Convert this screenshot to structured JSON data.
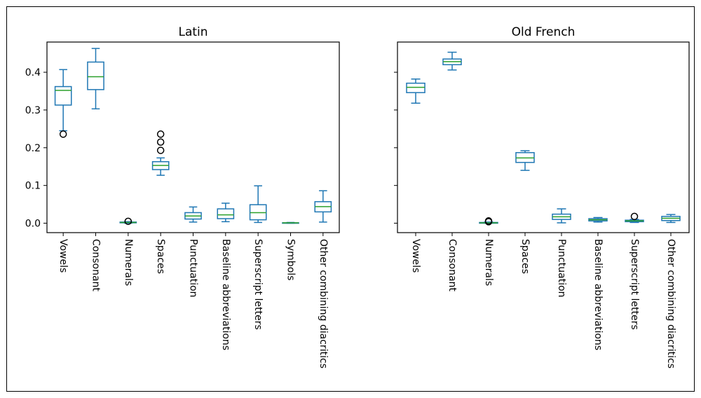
{
  "colors": {
    "box": "#1f77b4",
    "median": "#2ca02c",
    "flier": "#000000",
    "axes": "#000000"
  },
  "chart_data": [
    {
      "type": "box",
      "title": "Latin",
      "ylim": [
        -0.025,
        0.48
      ],
      "yticks": [
        "0.0",
        "0.1",
        "0.2",
        "0.3",
        "0.4"
      ],
      "ytick_values": [
        0.0,
        0.1,
        0.2,
        0.3,
        0.4
      ],
      "show_ytick_labels": true,
      "categories": [
        "Vowels",
        "Consonant",
        "Numerals",
        "Spaces",
        "Punctuation",
        "Baseline abbreviations",
        "Superscript letters",
        "Symbols",
        "Other combining diacritics"
      ],
      "boxes": [
        {
          "whislo": 0.245,
          "q1": 0.313,
          "med": 0.352,
          "q3": 0.362,
          "whishi": 0.407,
          "fliers": [
            0.236
          ]
        },
        {
          "whislo": 0.303,
          "q1": 0.354,
          "med": 0.388,
          "q3": 0.427,
          "whishi": 0.463,
          "fliers": []
        },
        {
          "whislo": 0.0,
          "q1": 0.001,
          "med": 0.002,
          "q3": 0.003,
          "whishi": 0.004,
          "fliers": [
            0.005
          ]
        },
        {
          "whislo": 0.127,
          "q1": 0.142,
          "med": 0.153,
          "q3": 0.163,
          "whishi": 0.173,
          "fliers": [
            0.193,
            0.215,
            0.236
          ]
        },
        {
          "whislo": 0.003,
          "q1": 0.011,
          "med": 0.019,
          "q3": 0.028,
          "whishi": 0.043,
          "fliers": []
        },
        {
          "whislo": 0.004,
          "q1": 0.012,
          "med": 0.022,
          "q3": 0.038,
          "whishi": 0.053,
          "fliers": []
        },
        {
          "whislo": 0.002,
          "q1": 0.009,
          "med": 0.028,
          "q3": 0.049,
          "whishi": 0.099,
          "fliers": []
        },
        {
          "whislo": 0.0,
          "q1": 0.0,
          "med": 0.001,
          "q3": 0.001,
          "whishi": 0.002,
          "fliers": []
        },
        {
          "whislo": 0.003,
          "q1": 0.03,
          "med": 0.044,
          "q3": 0.057,
          "whishi": 0.086,
          "fliers": []
        }
      ]
    },
    {
      "type": "box",
      "title": "Old French",
      "ylim": [
        -0.025,
        0.48
      ],
      "yticks": [
        "0.0",
        "0.1",
        "0.2",
        "0.3",
        "0.4"
      ],
      "ytick_values": [
        0.0,
        0.1,
        0.2,
        0.3,
        0.4
      ],
      "show_ytick_labels": false,
      "categories": [
        "Vowels",
        "Consonant",
        "Numerals",
        "Spaces",
        "Punctuation",
        "Baseline abbreviations",
        "Superscript letters",
        "Other combining diacritics"
      ],
      "boxes": [
        {
          "whislo": 0.318,
          "q1": 0.346,
          "med": 0.36,
          "q3": 0.371,
          "whishi": 0.382,
          "fliers": []
        },
        {
          "whislo": 0.406,
          "q1": 0.42,
          "med": 0.428,
          "q3": 0.435,
          "whishi": 0.453,
          "fliers": []
        },
        {
          "whislo": 0.0,
          "q1": 0.0,
          "med": 0.001,
          "q3": 0.002,
          "whishi": 0.003,
          "fliers": [
            0.004,
            0.006
          ]
        },
        {
          "whislo": 0.14,
          "q1": 0.161,
          "med": 0.173,
          "q3": 0.187,
          "whishi": 0.192,
          "fliers": []
        },
        {
          "whislo": 0.001,
          "q1": 0.01,
          "med": 0.017,
          "q3": 0.024,
          "whishi": 0.038,
          "fliers": []
        },
        {
          "whislo": 0.003,
          "q1": 0.006,
          "med": 0.009,
          "q3": 0.012,
          "whishi": 0.015,
          "fliers": []
        },
        {
          "whislo": 0.002,
          "q1": 0.004,
          "med": 0.006,
          "q3": 0.008,
          "whishi": 0.01,
          "fliers": [
            0.018
          ]
        },
        {
          "whislo": 0.002,
          "q1": 0.007,
          "med": 0.013,
          "q3": 0.018,
          "whishi": 0.023,
          "fliers": []
        }
      ]
    }
  ]
}
